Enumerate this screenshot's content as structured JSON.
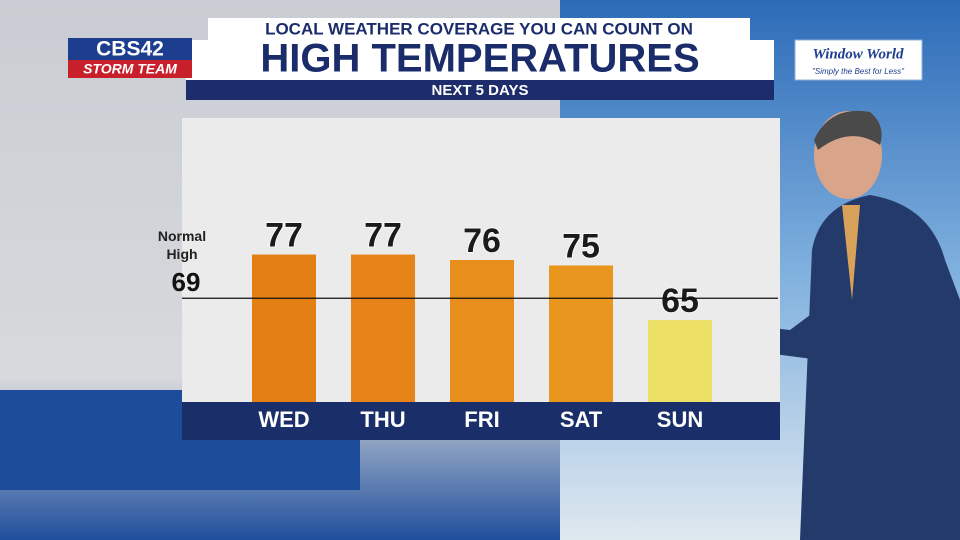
{
  "header": {
    "tagline": "LOCAL WEATHER COVERAGE YOU CAN COUNT ON",
    "station": "CBS42",
    "team": "STORM TEAM",
    "sponsor": "Window World",
    "sponsor_slogan": "\"Simply the Best for Less\""
  },
  "chart_data": {
    "type": "bar",
    "title": "HIGH TEMPERATURES",
    "subtitle": "NEXT 5 DAYS",
    "categories": [
      "WED",
      "THU",
      "FRI",
      "SAT",
      "SUN"
    ],
    "values": [
      77,
      77,
      76,
      75,
      65
    ],
    "colors": [
      "#e47f14",
      "#e6841a",
      "#e78e1c",
      "#e8961e",
      "#ebe065"
    ],
    "ylim": [
      50,
      102
    ],
    "reference": {
      "label": "Normal High",
      "value": 69
    }
  }
}
